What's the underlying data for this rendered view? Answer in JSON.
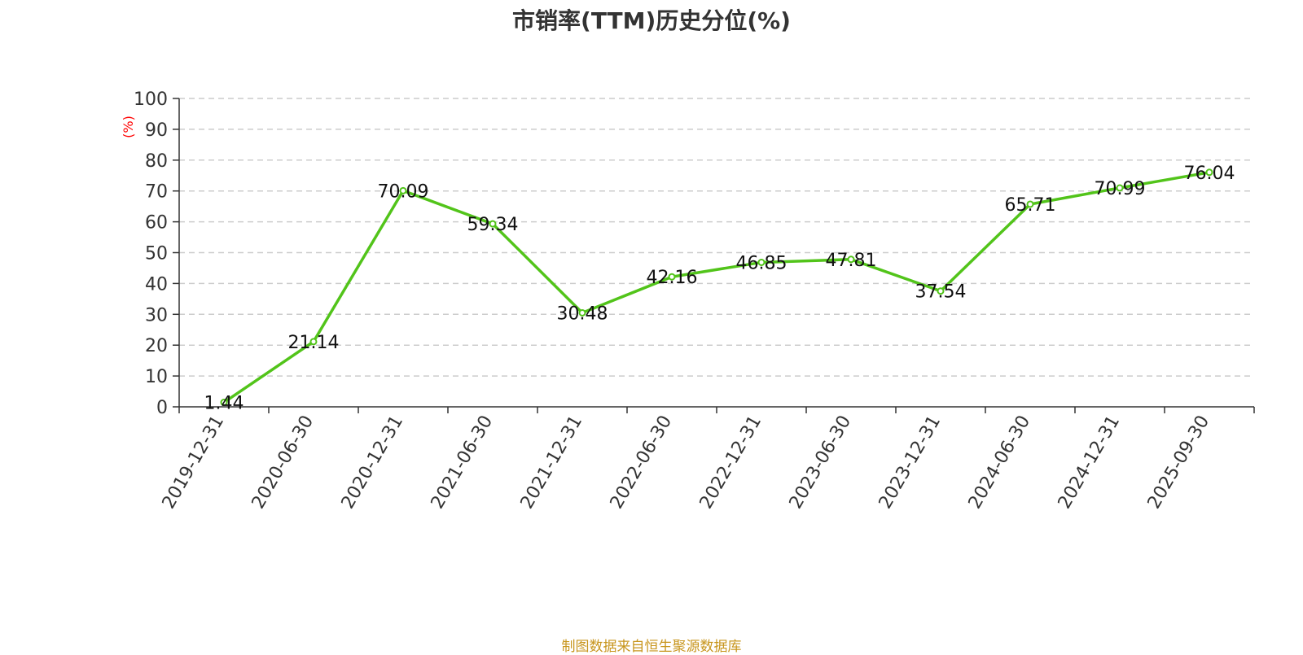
{
  "colors": {
    "line": "#52c41a",
    "ylabel": "#ff0000",
    "source": "#c8961e",
    "grid": "#cccccc",
    "axis": "#333333"
  },
  "chart_data": {
    "type": "line",
    "title": "市销率(TTM)历史分位(%)",
    "ylabel": "(%)",
    "xlabel": "",
    "ylim": [
      0,
      100
    ],
    "yticks": [
      0,
      10,
      20,
      30,
      40,
      50,
      60,
      70,
      80,
      90,
      100
    ],
    "grid": true,
    "categories": [
      "2019-12-31",
      "2020-06-30",
      "2020-12-31",
      "2021-06-30",
      "2021-12-31",
      "2022-06-30",
      "2022-12-31",
      "2023-06-30",
      "2023-12-31",
      "2024-06-30",
      "2024-12-31",
      "2025-09-30"
    ],
    "values": [
      1.44,
      21.14,
      70.09,
      59.34,
      30.48,
      42.16,
      46.85,
      47.81,
      37.54,
      65.71,
      70.99,
      76.04
    ]
  },
  "footer": {
    "source": "制图数据来自恒生聚源数据库"
  }
}
